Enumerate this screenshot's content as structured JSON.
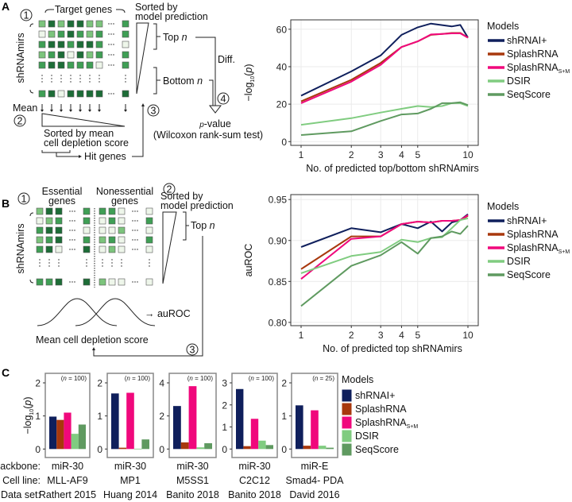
{
  "panels": {
    "a": "A",
    "b": "B",
    "c": "C"
  },
  "diagram_a": {
    "step1": "1",
    "step2": "2",
    "step3": "3",
    "step4": "4",
    "target_genes": "Target genes",
    "shrnamirs": "shRNAmirs",
    "sorted_line1": "Sorted by",
    "sorted_line2": "model prediction",
    "top": "Top ",
    "bottom": "Bottom ",
    "n": "n",
    "diff": "Diff.",
    "mean": "Mean",
    "sorted_mean1": "Sorted by mean",
    "sorted_mean2": "cell depletion score",
    "hit_genes": "Hit genes",
    "p": "p",
    "pvalue": "-value",
    "test": "(Wilcoxon rank-sum test)"
  },
  "diagram_b": {
    "step1": "1",
    "step2": "2",
    "step3": "3",
    "essential1": "Essential",
    "essential2": "genes",
    "nonessential1": "Nonessential",
    "nonessential2": "genes",
    "shrnamirs": "shRNAmirs",
    "sorted_line1": "Sorted by",
    "sorted_line2": "model prediction",
    "top": "Top ",
    "n": "n",
    "auroc": "→ auROC",
    "depletion": "Mean cell depletion score"
  },
  "legend_title": "Models",
  "models": [
    {
      "name": "shRNAI+",
      "sub": "",
      "color": "#0f1f5c"
    },
    {
      "name": "SplashRNA",
      "sub": "",
      "color": "#a8380d"
    },
    {
      "name": "SplashRNA",
      "sub": "S+M",
      "color": "#f0087c"
    },
    {
      "name": "DSIR",
      "sub": "",
      "color": "#80cc80"
    },
    {
      "name": "SeqScore",
      "sub": "",
      "color": "#5f9a60"
    }
  ],
  "chart_data": [
    {
      "type": "line",
      "panel": "A",
      "xlabel": "No. of predicted top/bottom shRNAmirs",
      "ylabel": "-log10(p)",
      "ylabel_main": "−log",
      "ylabel_sub": "10",
      "ylabel_p": "p",
      "x_scale": "log",
      "x": [
        1,
        2,
        3,
        4,
        5,
        6,
        7,
        8,
        9,
        10
      ],
      "xticks": [
        1,
        2,
        3,
        4,
        5,
        10
      ],
      "xtick_labels": [
        "1",
        "2",
        "3",
        "4",
        "5",
        "10"
      ],
      "ylim": [
        -2,
        65
      ],
      "yticks": [
        0,
        20,
        40,
        60
      ],
      "ytick_labels": [
        "0",
        "20",
        "40",
        "60"
      ],
      "grid": true,
      "legend": "right",
      "series": [
        {
          "name": "shRNAI+",
          "values": [
            24.5,
            37.5,
            46,
            57,
            61,
            63,
            62.2,
            61.5,
            62.3,
            55.5
          ]
        },
        {
          "name": "SplashRNA",
          "values": [
            21.5,
            33,
            42,
            50.5,
            53.5,
            57,
            57.5,
            58,
            58,
            55.5
          ]
        },
        {
          "name": "SplashRNA S+M",
          "values": [
            20.5,
            32,
            41,
            50.5,
            53.5,
            57.2,
            57.5,
            57.8,
            57.8,
            55.5
          ]
        },
        {
          "name": "DSIR",
          "values": [
            9,
            12.5,
            15.5,
            17.5,
            19,
            18.5,
            19,
            20.5,
            20.5,
            19
          ]
        },
        {
          "name": "SeqScore",
          "values": [
            3.5,
            5.5,
            11,
            14.5,
            15,
            17.5,
            20.5,
            20.5,
            21,
            19.5
          ]
        }
      ]
    },
    {
      "type": "line",
      "panel": "B",
      "xlabel": "No. of predicted top shRNAmirs",
      "ylabel": "auROC",
      "x_scale": "log",
      "x": [
        1,
        2,
        3,
        4,
        5,
        6,
        7,
        8,
        9,
        10
      ],
      "xticks": [
        1,
        2,
        3,
        4,
        5,
        10
      ],
      "xtick_labels": [
        "1",
        "2",
        "3",
        "4",
        "5",
        "10"
      ],
      "ylim": [
        0.796,
        0.956
      ],
      "yticks": [
        0.8,
        0.85,
        0.9,
        0.95
      ],
      "ytick_labels": [
        "0.80",
        "0.85",
        "0.90",
        "0.95"
      ],
      "grid": true,
      "legend": "right",
      "series": [
        {
          "name": "shRNAI+",
          "values": [
            0.892,
            0.915,
            0.91,
            0.92,
            0.915,
            0.923,
            0.911,
            0.922,
            0.925,
            0.932
          ]
        },
        {
          "name": "SplashRNA",
          "values": [
            0.865,
            0.905,
            0.905,
            0.92,
            0.923,
            0.922,
            0.924,
            0.924,
            0.925,
            0.93
          ]
        },
        {
          "name": "SplashRNA S+M",
          "values": [
            0.853,
            0.902,
            0.905,
            0.92,
            0.923,
            0.922,
            0.924,
            0.924,
            0.925,
            0.931
          ]
        },
        {
          "name": "DSIR",
          "values": [
            0.86,
            0.881,
            0.886,
            0.901,
            0.898,
            0.903,
            0.904,
            0.915,
            0.925,
            0.927
          ]
        },
        {
          "name": "SeqScore",
          "values": [
            0.82,
            0.869,
            0.882,
            0.898,
            0.884,
            0.903,
            0.905,
            0.911,
            0.908,
            0.918
          ]
        }
      ]
    },
    {
      "type": "bar",
      "panel": "C",
      "ylabel": "-log10(p)",
      "ylabel_main": "−log",
      "ylabel_sub": "10",
      "ylabel_p": "p",
      "categories": [
        "shRNAI+",
        "SplashRNA",
        "SplashRNA S+M",
        "DSIR",
        "SeqScore"
      ],
      "row_labels": [
        "Backbone:",
        "Cell line:",
        "Data set:"
      ],
      "legend": "right",
      "grid": false,
      "subplots": [
        {
          "n_label": "(n = 100)",
          "n_pre": "(",
          "n_var": "n",
          "n_post": " = 100)",
          "backbone": "miR-30",
          "cell_line": "MLL-AF9",
          "data_set": "Rathert 2015",
          "yticks": [
            0,
            1,
            2
          ],
          "values": [
            0.98,
            0.88,
            1.1,
            0.46,
            0.74
          ]
        },
        {
          "n_label": "(n = 100)",
          "n_pre": "(",
          "n_var": "n",
          "n_post": " = 100)",
          "backbone": "miR-30",
          "cell_line": "MP1",
          "data_set": "Huang 2014",
          "yticks": [
            0,
            1,
            2
          ],
          "values": [
            1.68,
            0.04,
            1.7,
            0.01,
            0.29
          ]
        },
        {
          "n_label": "(n = 100)",
          "n_pre": "(",
          "n_var": "n",
          "n_post": " = 100)",
          "backbone": "miR-30",
          "cell_line": "M5SS1",
          "data_set": "Banito 2018",
          "yticks": [
            0,
            2,
            4
          ],
          "values": [
            2.6,
            0.4,
            3.8,
            0.1,
            0.35
          ]
        },
        {
          "n_label": "(n = 100)",
          "n_pre": "(",
          "n_var": "n",
          "n_post": " = 100)",
          "backbone": "miR-30",
          "cell_line": "C2C12",
          "data_set": "Banito 2018",
          "yticks": [
            0,
            1,
            2,
            3
          ],
          "values": [
            2.72,
            0.13,
            1.37,
            0.38,
            0.18
          ]
        },
        {
          "n_label": "(n = 25)",
          "n_pre": "(",
          "n_var": "n",
          "n_post": " = 25)",
          "backbone": "miR-E",
          "cell_line": "Smad4- PDA",
          "data_set": "David 2016",
          "yticks": [
            0,
            1,
            2
          ],
          "values": [
            1.32,
            0.1,
            1.17,
            0.1,
            0.04
          ]
        }
      ]
    }
  ]
}
